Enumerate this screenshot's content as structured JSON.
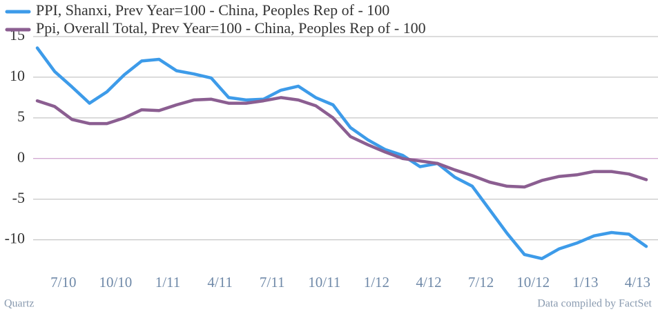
{
  "chart_data": {
    "type": "line",
    "categories": [
      null,
      null,
      "7/10",
      null,
      null,
      "10/10",
      null,
      null,
      "1/11",
      null,
      null,
      "4/11",
      null,
      null,
      "7/11",
      null,
      null,
      "10/11",
      null,
      null,
      "1/12",
      null,
      null,
      "4/12",
      null,
      null,
      "7/12",
      null,
      null,
      "10/12",
      null,
      null,
      "1/13",
      null,
      null,
      "4/13"
    ],
    "series": [
      {
        "name": "PPI, Shanxi, Prev Year=100 - China, Peoples Rep of - 100",
        "color": "#3d9be9",
        "values": [
          13.6,
          10.7,
          8.8,
          6.8,
          8.2,
          10.3,
          12.0,
          12.2,
          10.8,
          10.4,
          9.9,
          7.5,
          7.2,
          7.3,
          8.4,
          8.9,
          7.5,
          6.6,
          3.8,
          2.3,
          1.1,
          0.4,
          -1.0,
          -0.6,
          -2.3,
          -3.4,
          -6.3,
          -9.2,
          -11.8,
          -12.3,
          -11.1,
          -10.4,
          -9.5,
          -9.1,
          -9.3,
          -10.8
        ]
      },
      {
        "name": "Ppi, Overall Total, Prev Year=100 - China, Peoples Rep of - 100",
        "color": "#8b5e91",
        "values": [
          7.1,
          6.4,
          4.8,
          4.3,
          4.3,
          5.0,
          6.0,
          5.9,
          6.6,
          7.2,
          7.3,
          6.8,
          6.8,
          7.1,
          7.5,
          7.2,
          6.5,
          5.0,
          2.7,
          1.7,
          0.8,
          0.0,
          -0.3,
          -0.6,
          -1.4,
          -2.1,
          -2.9,
          -3.4,
          -3.5,
          -2.7,
          -2.2,
          -2.0,
          -1.6,
          -1.6,
          -1.9,
          -2.6
        ]
      }
    ],
    "ylim": [
      -13,
      15
    ],
    "yticks": [
      -10,
      -5,
      0,
      5,
      10,
      15
    ],
    "grid": true,
    "legend": "top-left",
    "source_left": "Quartz",
    "source_right": "Data compiled by FactSet"
  }
}
